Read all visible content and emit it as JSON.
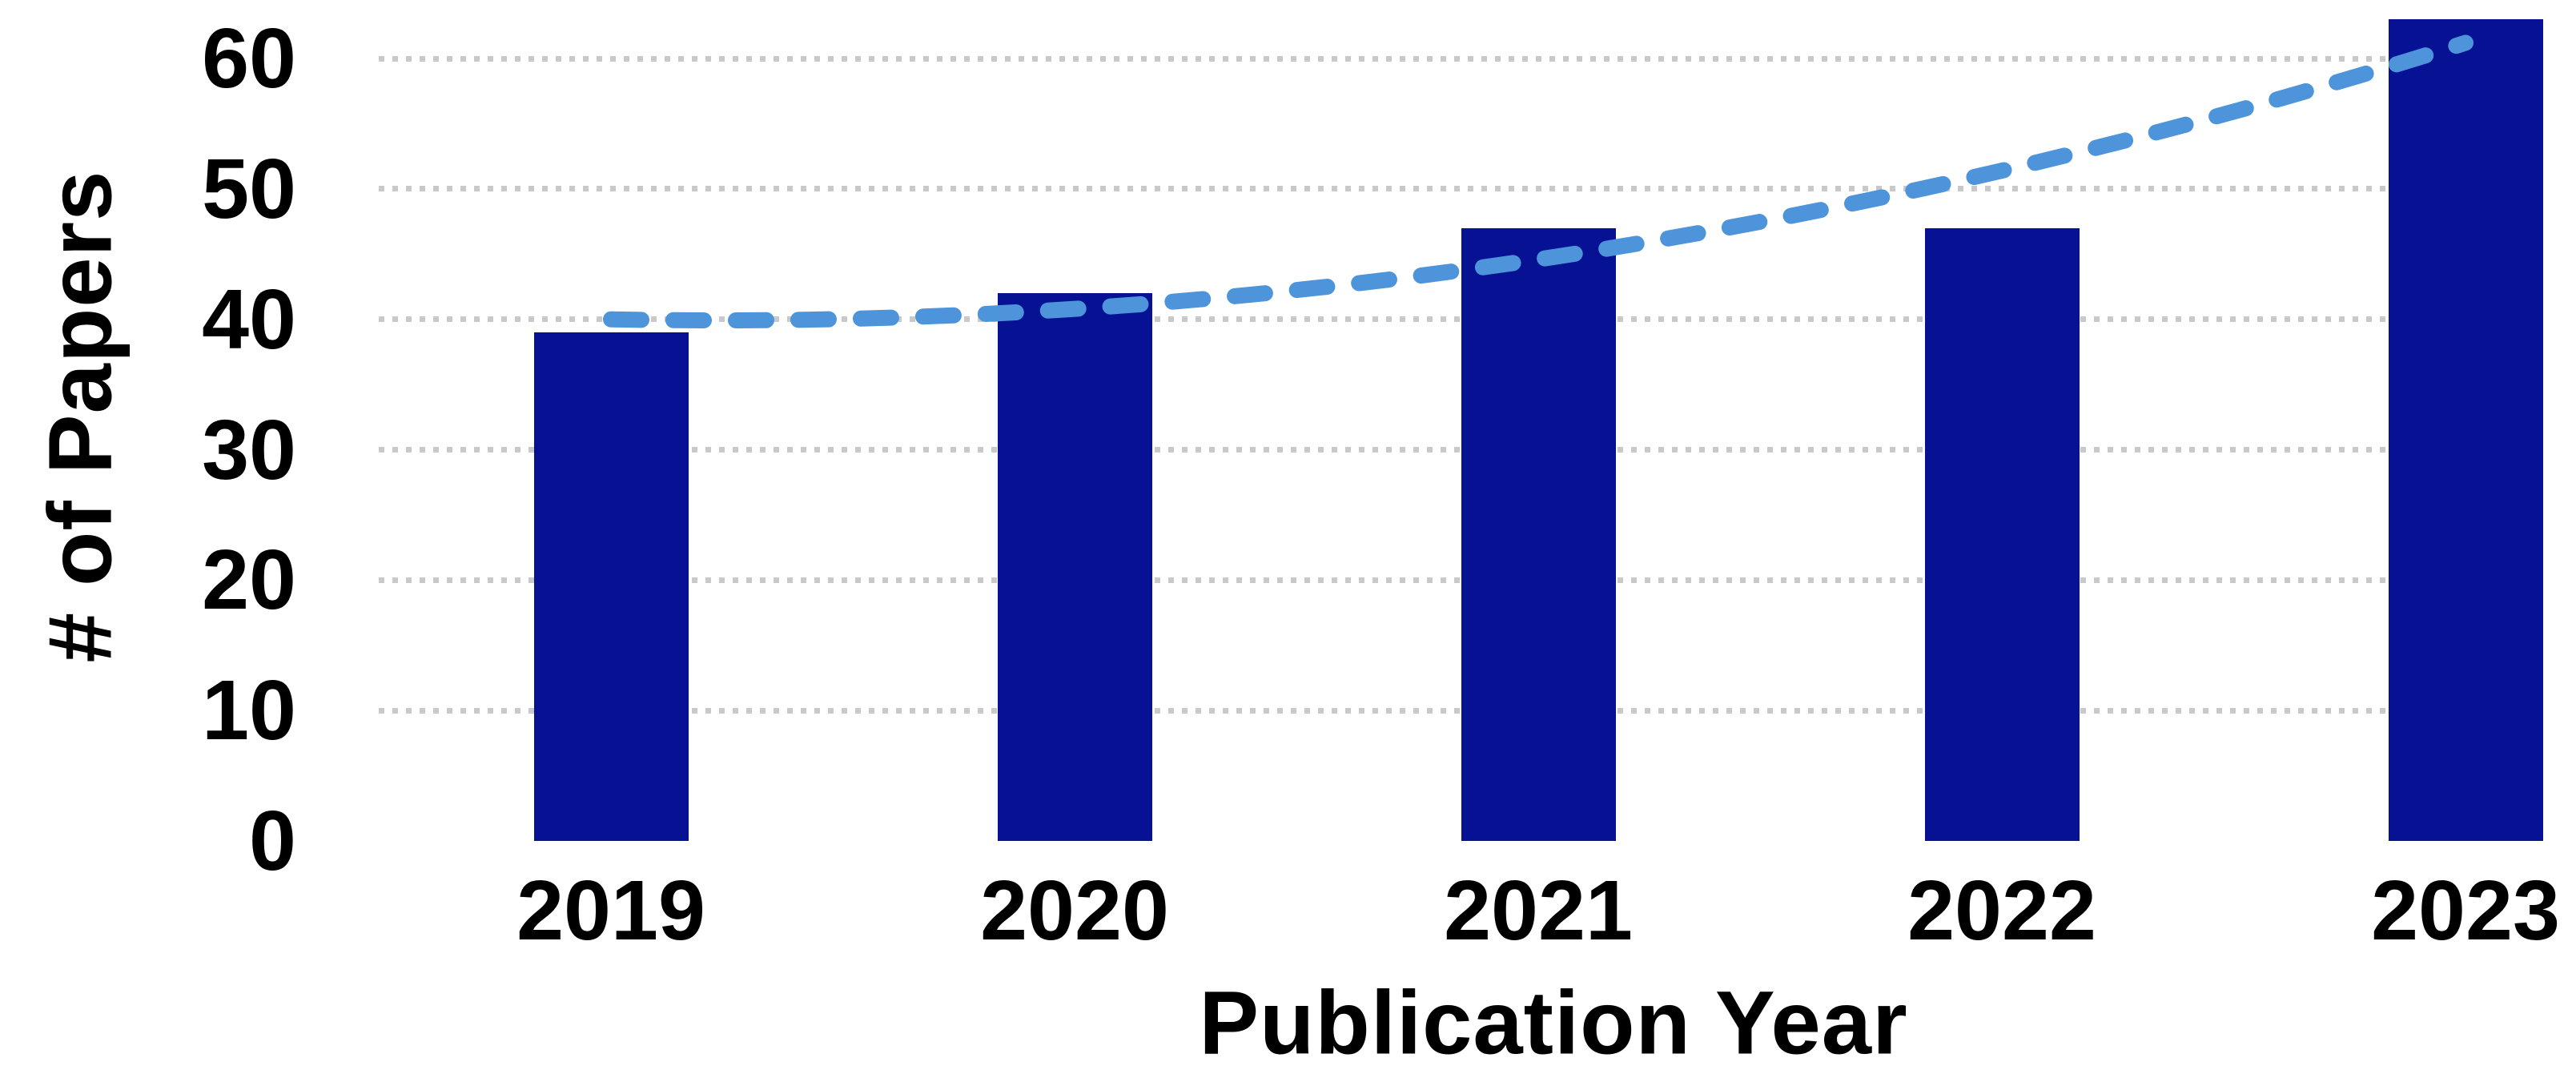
{
  "chart_data": {
    "type": "bar",
    "title": "",
    "xlabel": "Publication Year",
    "ylabel": "# of Papers",
    "categories": [
      "2019",
      "2020",
      "2021",
      "2022",
      "2023"
    ],
    "series": [
      {
        "name": "# of Papers",
        "values": [
          39,
          42,
          47,
          47,
          63
        ]
      }
    ],
    "trendline": {
      "type": "polynomial-order-2",
      "style": "dashed",
      "values_at_categories": [
        40.0,
        40.8,
        44.6,
        51.4,
        61.2
      ]
    },
    "yticks": [
      0,
      10,
      20,
      30,
      40,
      50,
      60
    ],
    "ylim": [
      0,
      60
    ],
    "grid": "horizontal-dotted",
    "legend_position": "none",
    "colors": {
      "bar": "#061293",
      "trend": "#4e94da",
      "gridline": "#c9c9c9",
      "text": "#000000",
      "background": "#ffffff"
    }
  }
}
